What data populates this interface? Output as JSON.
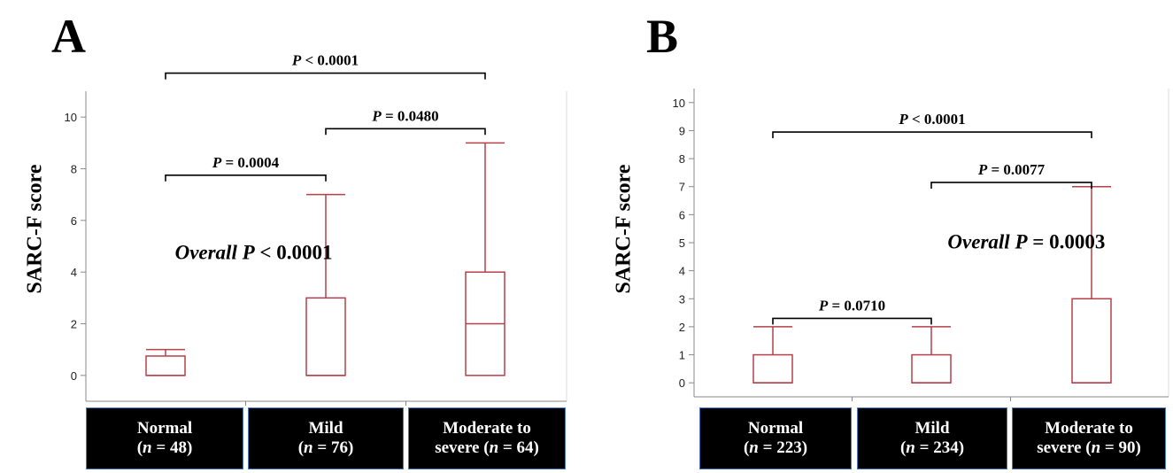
{
  "chart_data": [
    {
      "type": "box",
      "panel": "A",
      "ylabel": "SARC-F score",
      "ylim": [
        -1,
        11
      ],
      "yticks": [
        0,
        2,
        4,
        6,
        8,
        10
      ],
      "categories": [
        {
          "line1": "Normal",
          "line2": "(n = 48)"
        },
        {
          "line1": "Mild",
          "line2": "(n = 76)"
        },
        {
          "line1": "Moderate to",
          "line2": "severe (n = 64)"
        }
      ],
      "boxes": [
        {
          "min": 0,
          "q1": 0,
          "median": 0,
          "q3": 0.75,
          "max": 1
        },
        {
          "min": 0,
          "q1": 0,
          "median": 0,
          "q3": 3,
          "max": 7
        },
        {
          "min": 0,
          "q1": 0,
          "median": 2,
          "q3": 4,
          "max": 9
        }
      ],
      "comparisons": [
        {
          "from": 0,
          "to": 1,
          "y": 7.75,
          "label": "P = 0.0004"
        },
        {
          "from": 1,
          "to": 2,
          "y": 9.55,
          "label": "P = 0.0480"
        },
        {
          "from": 0,
          "to": 2,
          "y": 11.7,
          "label": "P < 0.0001"
        }
      ],
      "overall": {
        "prefix": "Overall",
        "text": "P < 0.0001",
        "x": 0.55,
        "y": 4.5
      }
    },
    {
      "type": "box",
      "panel": "B",
      "ylabel": "SARC-F score",
      "ylim": [
        -0.5,
        10.5
      ],
      "yticks": [
        0,
        1,
        2,
        3,
        4,
        5,
        6,
        7,
        8,
        9,
        10
      ],
      "categories": [
        {
          "line1": "Normal",
          "line2": "(n = 223)"
        },
        {
          "line1": "Mild",
          "line2": "(n = 234)"
        },
        {
          "line1": "Moderate to",
          "line2": "severe (n = 90)"
        }
      ],
      "boxes": [
        {
          "min": 0,
          "q1": 0,
          "median": 0,
          "q3": 1,
          "max": 2
        },
        {
          "min": 0,
          "q1": 0,
          "median": 0,
          "q3": 1,
          "max": 2
        },
        {
          "min": 0,
          "q1": 0,
          "median": 0,
          "q3": 3,
          "max": 7
        }
      ],
      "comparisons": [
        {
          "from": 0,
          "to": 1,
          "y": 2.3,
          "label": "P = 0.0710"
        },
        {
          "from": 1,
          "to": 2,
          "y": 7.15,
          "label": "P = 0.0077"
        },
        {
          "from": 0,
          "to": 2,
          "y": 8.95,
          "label": "P < 0.0001"
        }
      ],
      "overall": {
        "prefix": "Overall",
        "text": "P = 0.0003",
        "x": 1.6,
        "y": 4.8
      }
    }
  ],
  "colors": {
    "box": "#b5404a",
    "axis": "#888888",
    "bracket": "#000000",
    "label_bg": "#000000",
    "label_border": "#4a7ab8"
  }
}
